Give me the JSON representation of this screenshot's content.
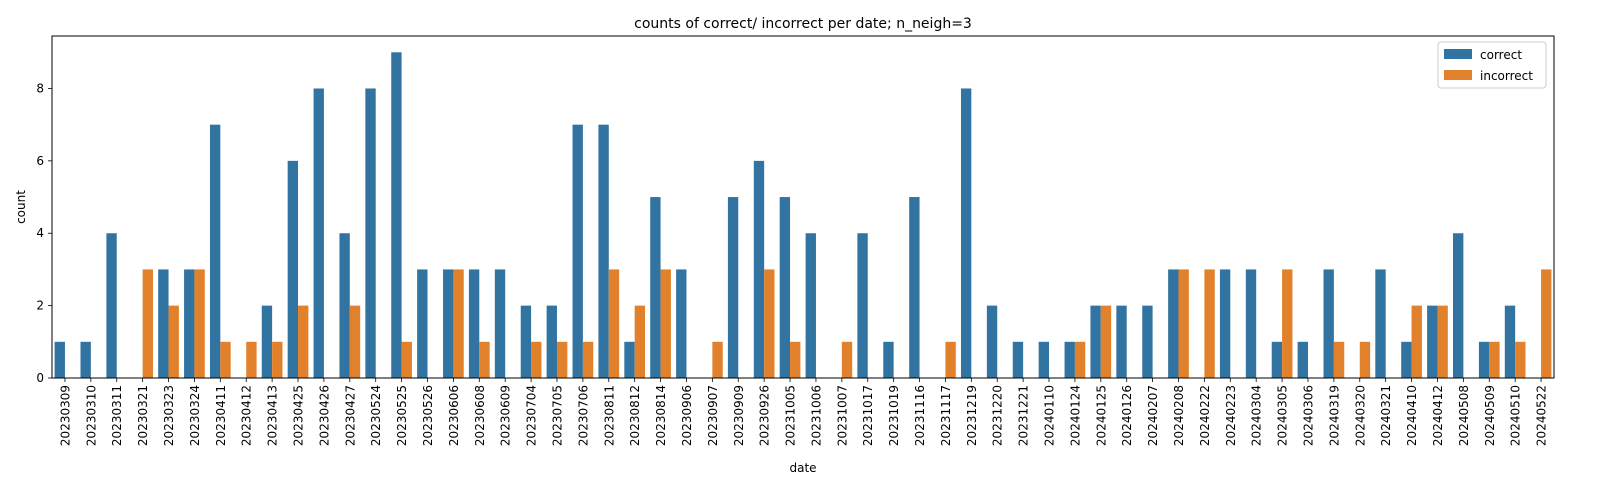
{
  "chart_data": {
    "type": "bar",
    "title": "counts of correct/ incorrect per date; n_neigh=3",
    "xlabel": "date",
    "ylabel": "count",
    "ylim": [
      0,
      9.45
    ],
    "yticks": [
      0,
      2,
      4,
      6,
      8
    ],
    "grid": false,
    "legend_position": "top-right",
    "categories": [
      "20230309",
      "20230310",
      "20230311",
      "20230321",
      "20230323",
      "20230324",
      "20230411",
      "20230412",
      "20230413",
      "20230425",
      "20230426",
      "20230427",
      "20230524",
      "20230525",
      "20230526",
      "20230606",
      "20230608",
      "20230609",
      "20230704",
      "20230705",
      "20230706",
      "20230811",
      "20230812",
      "20230814",
      "20230906",
      "20230907",
      "20230909",
      "20230926",
      "20231005",
      "20231006",
      "20231007",
      "20231017",
      "20231019",
      "20231116",
      "20231117",
      "20231219",
      "20231220",
      "20231221",
      "20240110",
      "20240124",
      "20240125",
      "20240126",
      "20240207",
      "20240208",
      "20240222",
      "20240223",
      "20240304",
      "20240305",
      "20240306",
      "20240319",
      "20240320",
      "20240321",
      "20240410",
      "20240412",
      "20240508",
      "20240509",
      "20240510",
      "20240522"
    ],
    "series": [
      {
        "name": "correct",
        "color": "#3274a1",
        "values": [
          1,
          1,
          4,
          0,
          3,
          3,
          7,
          0,
          2,
          6,
          8,
          4,
          8,
          9,
          3,
          3,
          3,
          3,
          2,
          2,
          7,
          7,
          1,
          5,
          3,
          0,
          5,
          6,
          5,
          4,
          0,
          4,
          1,
          5,
          0,
          8,
          2,
          1,
          1,
          1,
          2,
          2,
          2,
          3,
          0,
          3,
          3,
          1,
          1,
          3,
          0,
          3,
          1,
          2,
          4,
          1,
          2,
          0
        ]
      },
      {
        "name": "incorrect",
        "color": "#e1812c",
        "values": [
          0,
          0,
          0,
          3,
          2,
          3,
          1,
          1,
          1,
          2,
          0,
          2,
          0,
          1,
          0,
          3,
          1,
          0,
          1,
          1,
          1,
          3,
          2,
          3,
          0,
          1,
          0,
          3,
          1,
          0,
          1,
          0,
          0,
          0,
          1,
          0,
          0,
          0,
          0,
          1,
          2,
          0,
          0,
          3,
          3,
          0,
          0,
          3,
          0,
          1,
          1,
          0,
          2,
          2,
          0,
          1,
          1,
          3
        ]
      }
    ]
  }
}
